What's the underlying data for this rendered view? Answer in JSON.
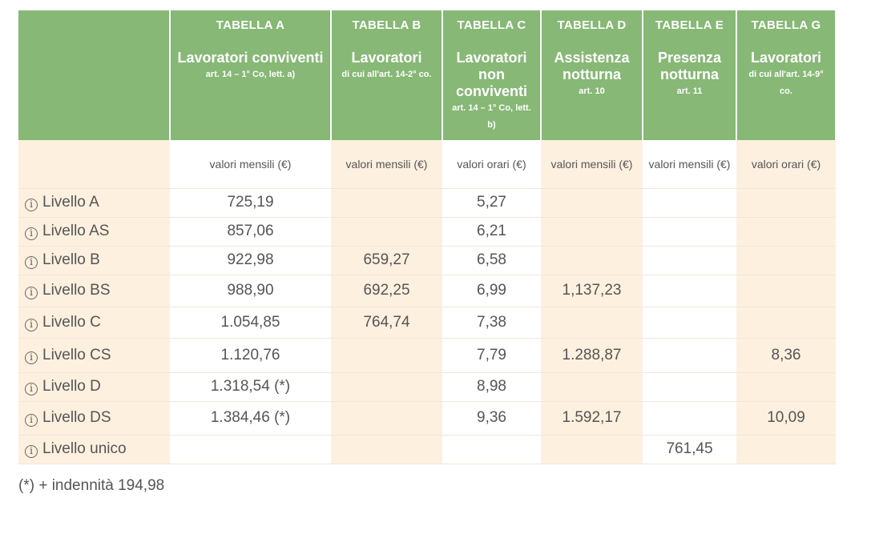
{
  "headers": [
    {
      "name": "TABELLA A",
      "title": "Lavoratori conviventi",
      "sub": "art. 14 – 1° Co, lett. a)",
      "sub_inline": true
    },
    {
      "name": "TABELLA B",
      "title": "Lavoratori",
      "sub": "di cui all'art. 14-2° co.",
      "sub_inline": false
    },
    {
      "name": "TABELLA C",
      "title": "Lavoratori non conviventi",
      "sub": "art. 14 – 1° Co, lett. b)",
      "sub_inline": false
    },
    {
      "name": "TABELLA D",
      "title": "Assistenza notturna",
      "sub": "art. 10",
      "sub_inline": false
    },
    {
      "name": "TABELLA E",
      "title": "Presenza notturna",
      "sub": "art. 11",
      "sub_inline": false
    },
    {
      "name": "TABELLA G",
      "title": "Lavoratori",
      "sub": "di cui all'art. 14-9° co.",
      "sub_inline": false
    }
  ],
  "units": [
    "valori mensili (€)",
    "valori mensili (€)",
    "valori orari (€)",
    "valori mensili (€)",
    "valori mensili (€)",
    "valori orari (€)"
  ],
  "rows": [
    {
      "label": "Livello A",
      "values": [
        "725,19",
        "",
        "5,27",
        "",
        "",
        ""
      ]
    },
    {
      "label": "Livello AS",
      "values": [
        "857,06",
        "",
        "6,21",
        "",
        "",
        ""
      ]
    },
    {
      "label": "Livello B",
      "values": [
        "922,98",
        "659,27",
        "6,58",
        "",
        "",
        ""
      ]
    },
    {
      "label": "Livello BS",
      "values": [
        "988,90",
        "692,25",
        "6,99",
        "1,137,23",
        "",
        ""
      ]
    },
    {
      "label": "Livello C",
      "values": [
        "1.054,85",
        "764,74",
        "7,38",
        "",
        "",
        ""
      ]
    },
    {
      "label": "Livello CS",
      "values": [
        "1.120,76",
        "",
        "7,79",
        "1.288,87",
        "",
        "8,36"
      ]
    },
    {
      "label": "Livello D",
      "values": [
        "1.318,54 (*)",
        "",
        "8,98",
        "",
        "",
        ""
      ]
    },
    {
      "label": "Livello DS",
      "values": [
        "1.384,46 (*)",
        "",
        "9,36",
        "1.592,17",
        "",
        "10,09"
      ]
    },
    {
      "label": "Livello unico",
      "values": [
        "",
        "",
        "",
        "",
        "761,45",
        ""
      ]
    }
  ],
  "info_icon": {
    "icon": "info-circle-icon",
    "glyph": "i"
  },
  "footnote": "(*) + indennità 194,98",
  "colors": {
    "header_green": "#87b876",
    "cell_beige": "#fef0df",
    "text": "#555555"
  }
}
